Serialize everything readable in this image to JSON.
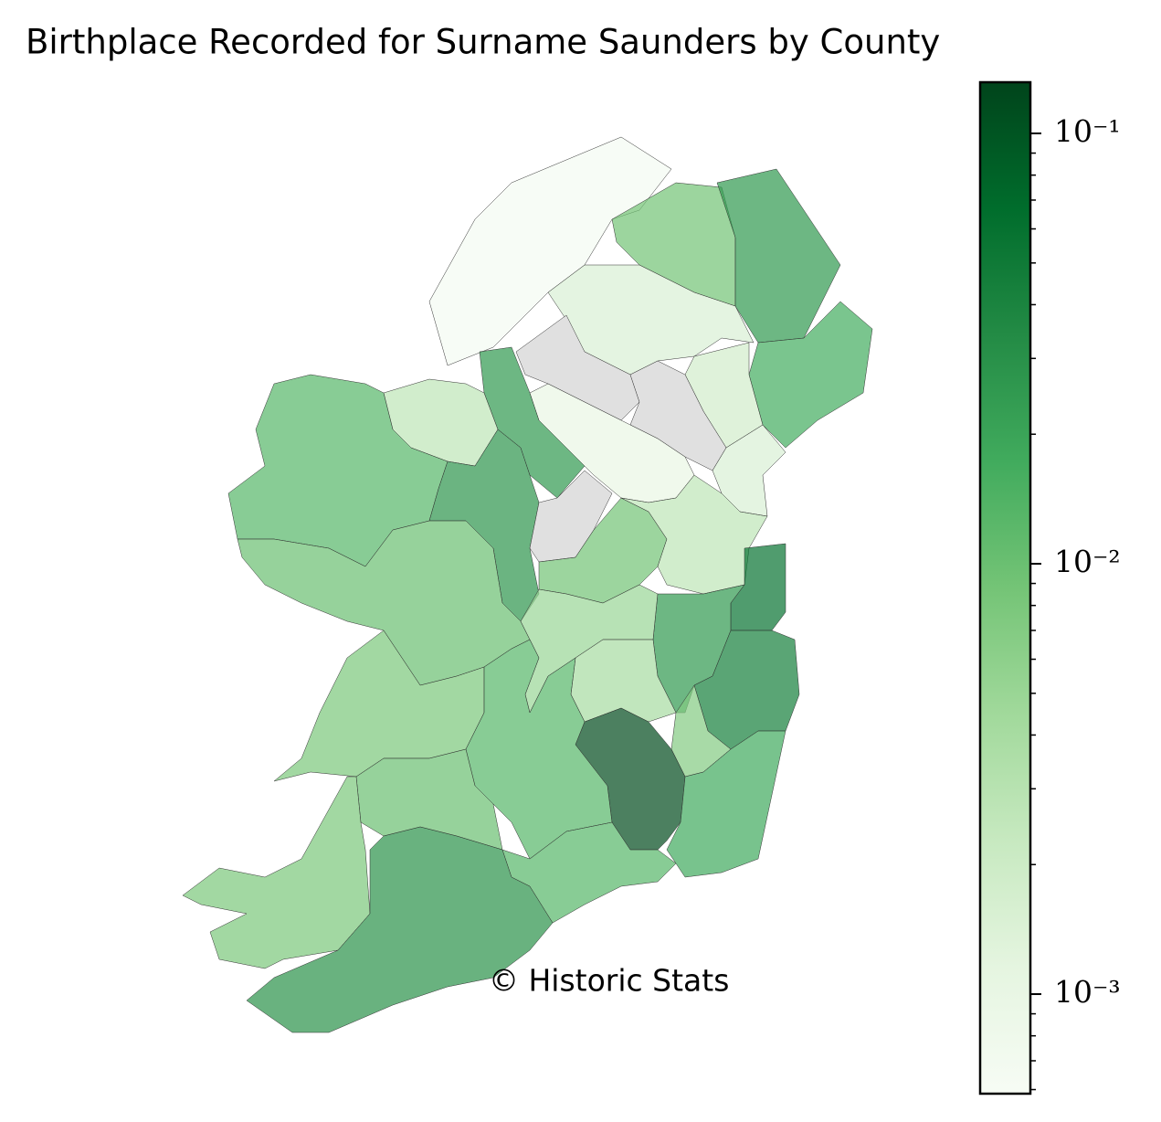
{
  "chart_data": {
    "type": "choropleth",
    "title": "Birthplace Recorded for Surname Saunders by County",
    "annotation": "© Historic Stats",
    "values": [
      0.00065,
      0.009,
      0.026,
      0.017,
      0.0015,
      0.0018,
      null,
      null,
      0.001,
      0.0015,
      0.026,
      0.0027,
      0.013,
      0.028,
      null,
      0.01,
      0.009,
      0.0027,
      0.06,
      0.026,
      0.005,
      0.004,
      0.045,
      0.007,
      0.12,
      0.018,
      0.008,
      0.013,
      0.01,
      0.008,
      0.03,
      0.013
    ],
    "colormap": [
      "#f7fcf5",
      "#e5f5e0",
      "#c7e9c0",
      "#a1d99b",
      "#74c476",
      "#41ab5d",
      "#238b45",
      "#006d2c",
      "#00441b"
    ],
    "missing_color": "#e0e0e0",
    "log_scale": true,
    "clim": [
      0.000587,
      0.1315
    ],
    "cticks": [
      {
        "value": 0.1,
        "label": "10⁻¹"
      },
      {
        "value": 0.01,
        "label": "10⁻²"
      },
      {
        "value": 0.001,
        "label": "10⁻³"
      }
    ],
    "minor_cticks": [
      0.0006,
      0.0007,
      0.0008,
      0.0009,
      0.002,
      0.003,
      0.004,
      0.005,
      0.006,
      0.007,
      0.008,
      0.009,
      0.02,
      0.03,
      0.04,
      0.05,
      0.06,
      0.07,
      0.08,
      0.09
    ]
  }
}
